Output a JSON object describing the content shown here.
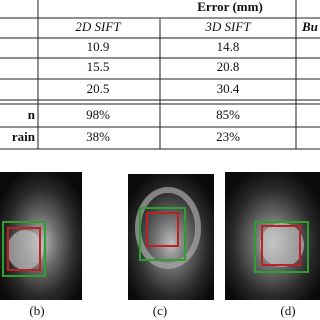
{
  "table": {
    "header": "Error (mm)",
    "columns": [
      "2D SIFT",
      "3D SIFT",
      "Bu"
    ],
    "rows": [
      {
        "values": [
          "10.9",
          "14.8"
        ]
      },
      {
        "values": [
          "15.5",
          "20.8"
        ]
      },
      {
        "values": [
          "20.5",
          "30.4"
        ]
      },
      {
        "label": "n",
        "values": [
          "98%",
          "85%"
        ]
      },
      {
        "label": "rain",
        "values": [
          "38%",
          "23%"
        ]
      }
    ]
  },
  "captions": [
    "(b)",
    "(c)",
    "(d)"
  ]
}
